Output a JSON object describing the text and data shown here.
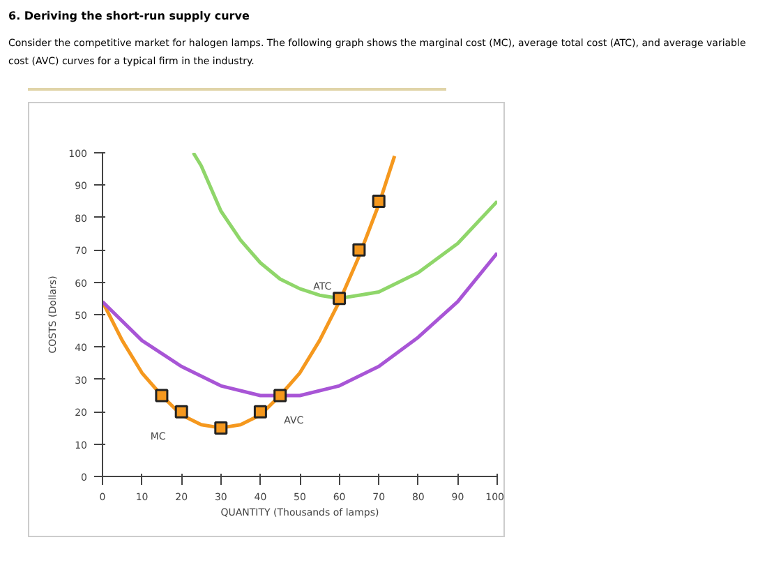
{
  "chart_data": {
    "type": "line",
    "title": "6. Deriving the short-run supply curve",
    "subtitle": "Consider the competitive market for halogen lamps. The following graph shows the marginal cost (MC), average total cost (ATC), and average variable cost (AVC) curves for a typical firm in the industry.",
    "xlabel": "QUANTITY (Thousands of lamps)",
    "ylabel": "COSTS (Dollars)",
    "xlim": [
      0,
      100
    ],
    "ylim": [
      0,
      100
    ],
    "xticks": [
      0,
      10,
      20,
      30,
      40,
      50,
      60,
      70,
      80,
      90,
      100
    ],
    "yticks": [
      0,
      10,
      20,
      30,
      40,
      50,
      60,
      70,
      80,
      90,
      100
    ],
    "grid": false,
    "legend": false,
    "marker": "none",
    "series": [
      {
        "name": "MC",
        "color": "#f5981e",
        "x": [
          0,
          5,
          10,
          15,
          20,
          25,
          30,
          35,
          40,
          45,
          50,
          55,
          60,
          65,
          70,
          74
        ],
        "values": [
          54,
          42,
          32,
          25,
          19,
          16,
          15,
          16,
          19,
          25,
          32,
          42,
          54,
          68,
          84,
          99
        ]
      },
      {
        "name": "AVC",
        "color": "#a855d6",
        "x": [
          0,
          10,
          20,
          30,
          40,
          45,
          50,
          60,
          70,
          80,
          90,
          100
        ],
        "values": [
          54,
          42,
          34,
          28,
          25,
          25,
          25,
          28,
          34,
          43,
          54,
          69
        ]
      },
      {
        "name": "ATC",
        "color": "#8fd66a",
        "x": [
          23,
          25,
          30,
          35,
          40,
          45,
          50,
          55,
          60,
          65,
          70,
          80,
          90,
          100
        ],
        "values": [
          100,
          96,
          82,
          73,
          66,
          61,
          58,
          56,
          55,
          56,
          57,
          63,
          72,
          85
        ]
      },
      {
        "type": "scatter",
        "marker": "square",
        "color": "#f5981e",
        "x": [
          15,
          20,
          30,
          40,
          45,
          60,
          65,
          70
        ],
        "values": [
          25,
          20,
          15,
          20,
          25,
          55,
          70,
          85
        ]
      }
    ]
  }
}
